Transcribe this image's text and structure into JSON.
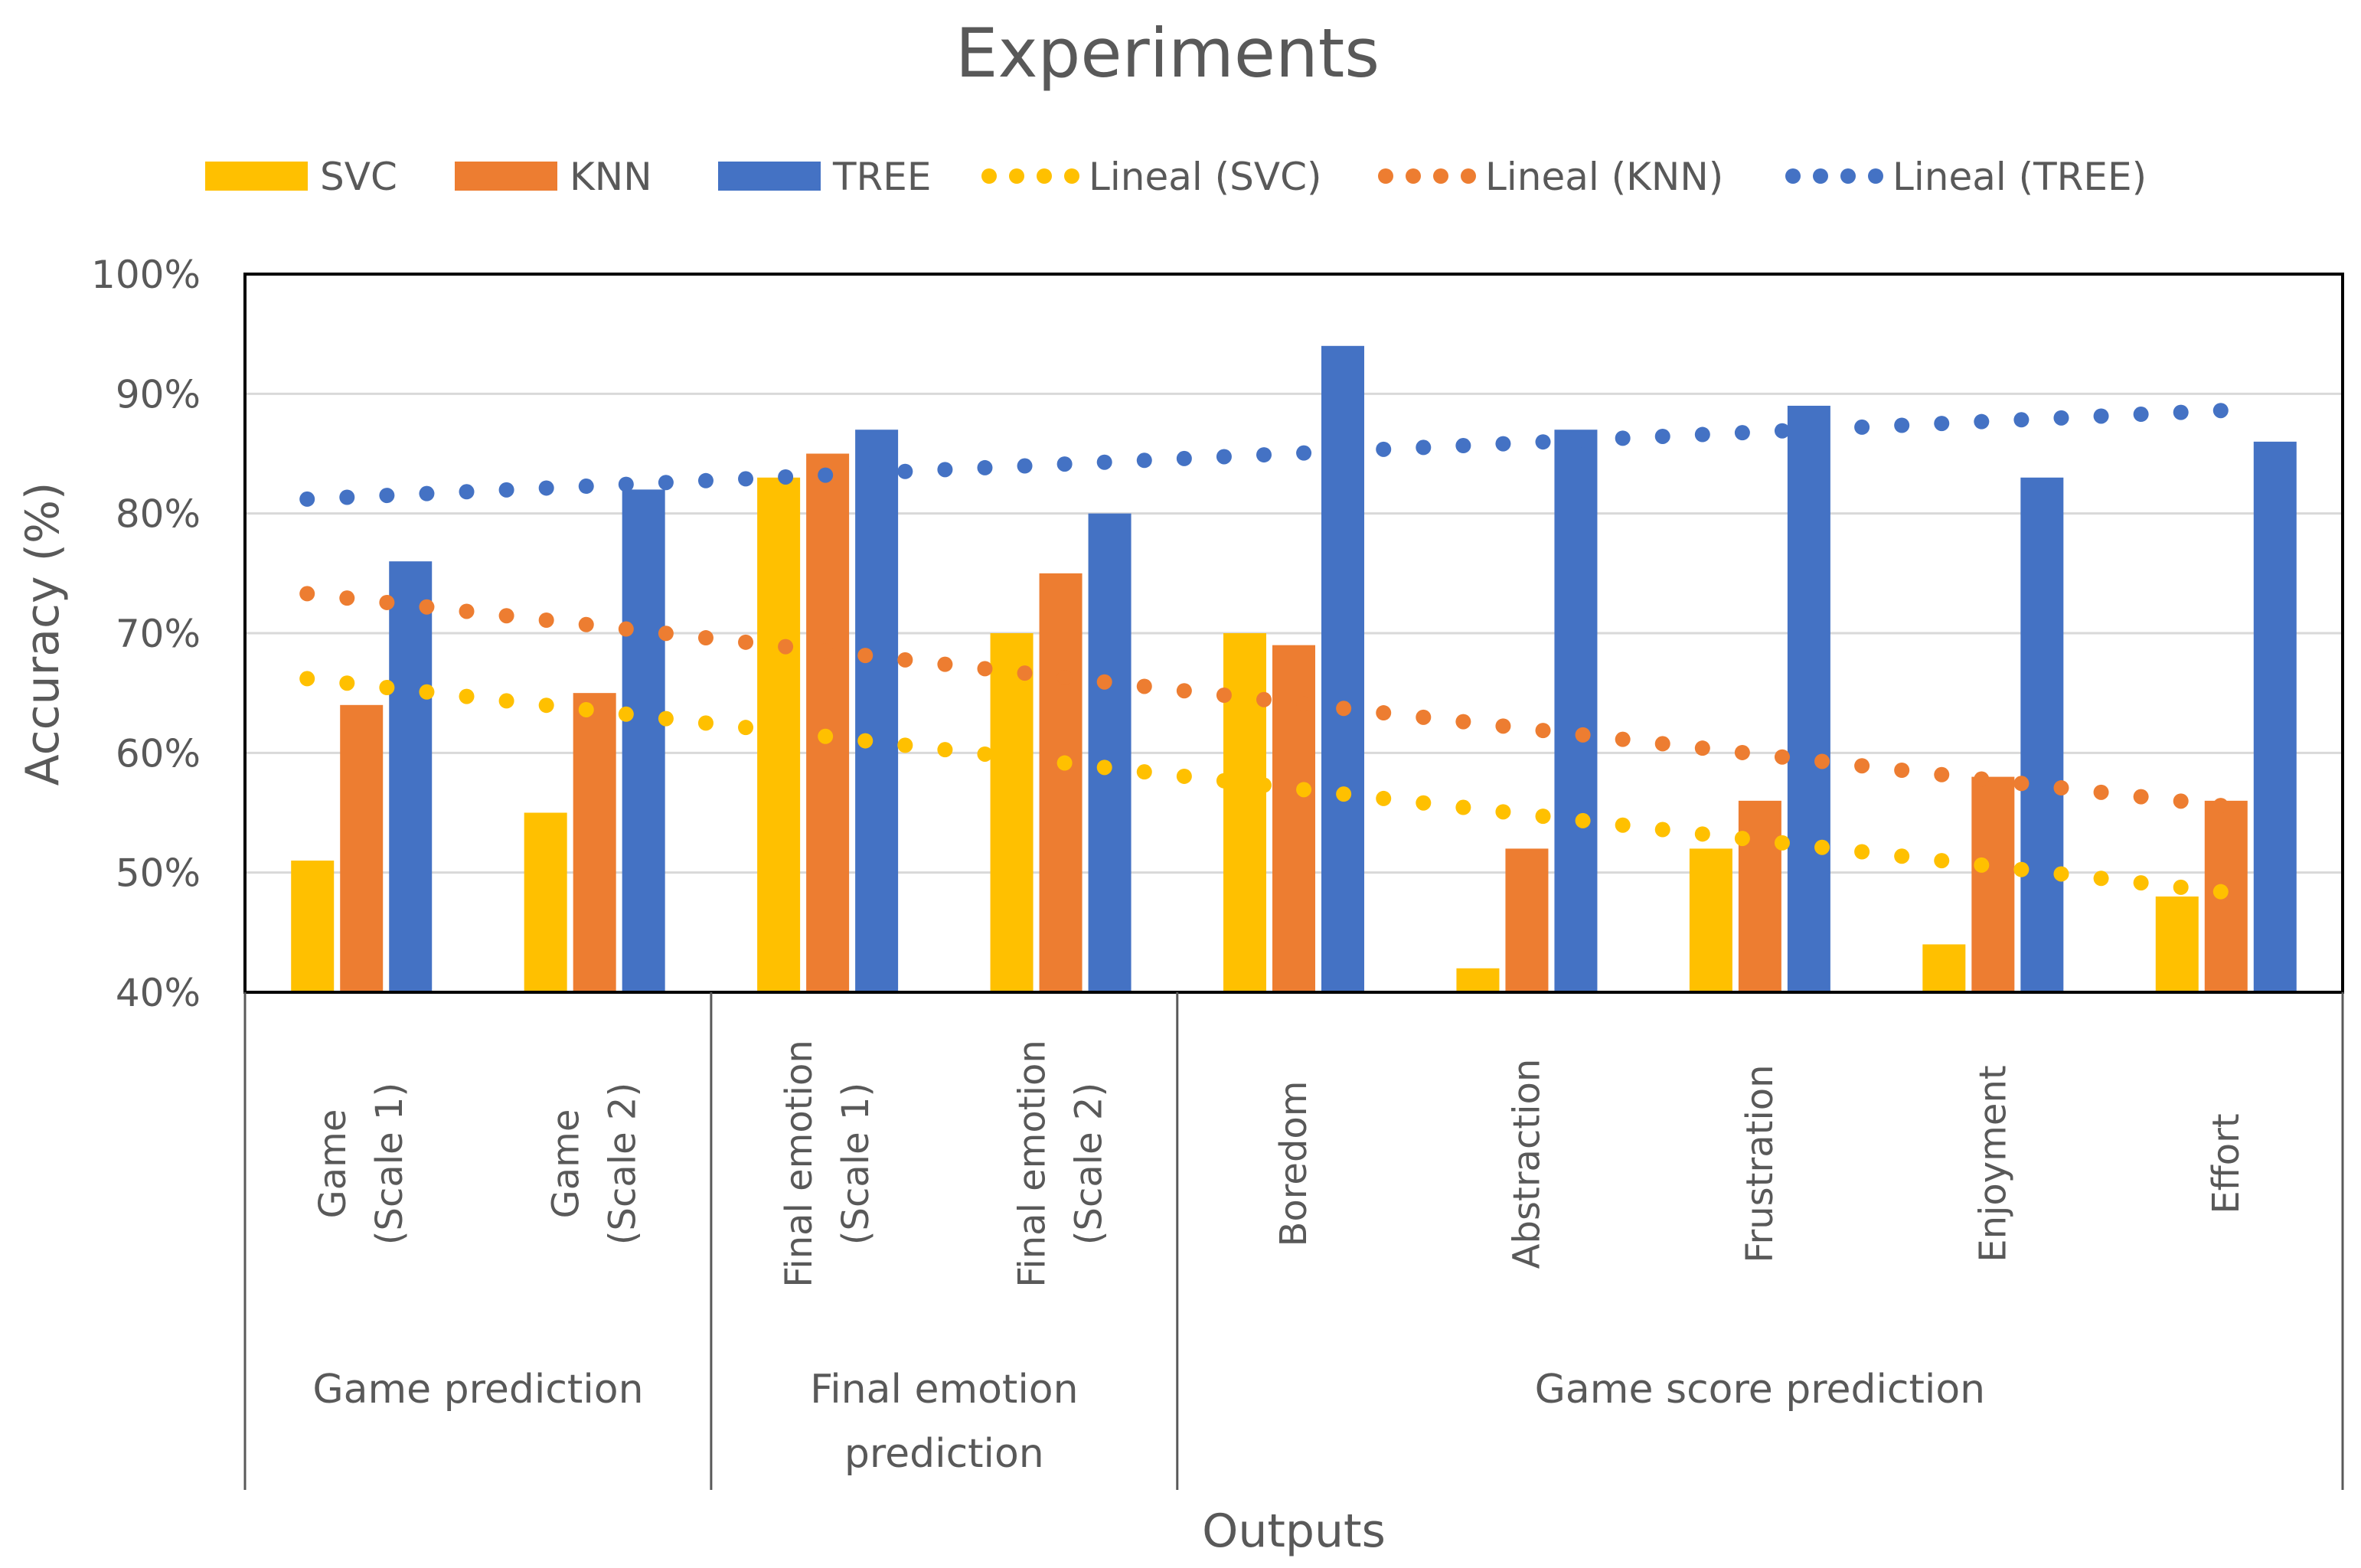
{
  "chart_data": {
    "type": "bar",
    "title": "Experiments",
    "xlabel": "Outputs",
    "ylabel": "Accuracy (%)",
    "ylim": [
      40,
      100
    ],
    "yticks": [
      "40%",
      "50%",
      "60%",
      "70%",
      "80%",
      "90%",
      "100%"
    ],
    "grid": true,
    "legend_position": "top",
    "categories": [
      [
        "Game",
        "(Scale 1)"
      ],
      [
        "Game",
        "(Scale 2)"
      ],
      [
        "Final emotion",
        "(Scale 1)"
      ],
      [
        "Final emotion",
        "(Scale 2)"
      ],
      [
        "Boredom"
      ],
      [
        "Abstraction"
      ],
      [
        "Frustration"
      ],
      [
        "Enjoyment"
      ],
      [
        "Effort"
      ]
    ],
    "groups": [
      {
        "label": [
          "Game prediction"
        ],
        "span": [
          0,
          1
        ]
      },
      {
        "label": [
          "Final emotion",
          "prediction"
        ],
        "span": [
          2,
          3
        ]
      },
      {
        "label": [
          "Game score prediction"
        ],
        "span": [
          4,
          8
        ]
      }
    ],
    "series": [
      {
        "name": "SVC",
        "color": "#FFC000",
        "values": [
          51,
          55,
          83,
          70,
          70,
          42,
          52,
          44,
          48
        ]
      },
      {
        "name": "KNN",
        "color": "#ED7D31",
        "values": [
          64,
          65,
          85,
          75,
          69,
          52,
          56,
          58,
          56
        ]
      },
      {
        "name": "TREE",
        "color": "#4472C4",
        "values": [
          76,
          82,
          87,
          80,
          94,
          87,
          89,
          83,
          86
        ]
      }
    ],
    "trendlines": [
      {
        "name": "Lineal (SVC)",
        "color": "#FFC000",
        "start": 66.2,
        "end": 48.4
      },
      {
        "name": "Lineal (KNN)",
        "color": "#ED7D31",
        "start": 73.3,
        "end": 55.6
      },
      {
        "name": "Lineal (TREE)",
        "color": "#4472C4",
        "start": 81.2,
        "end": 88.6
      }
    ]
  }
}
